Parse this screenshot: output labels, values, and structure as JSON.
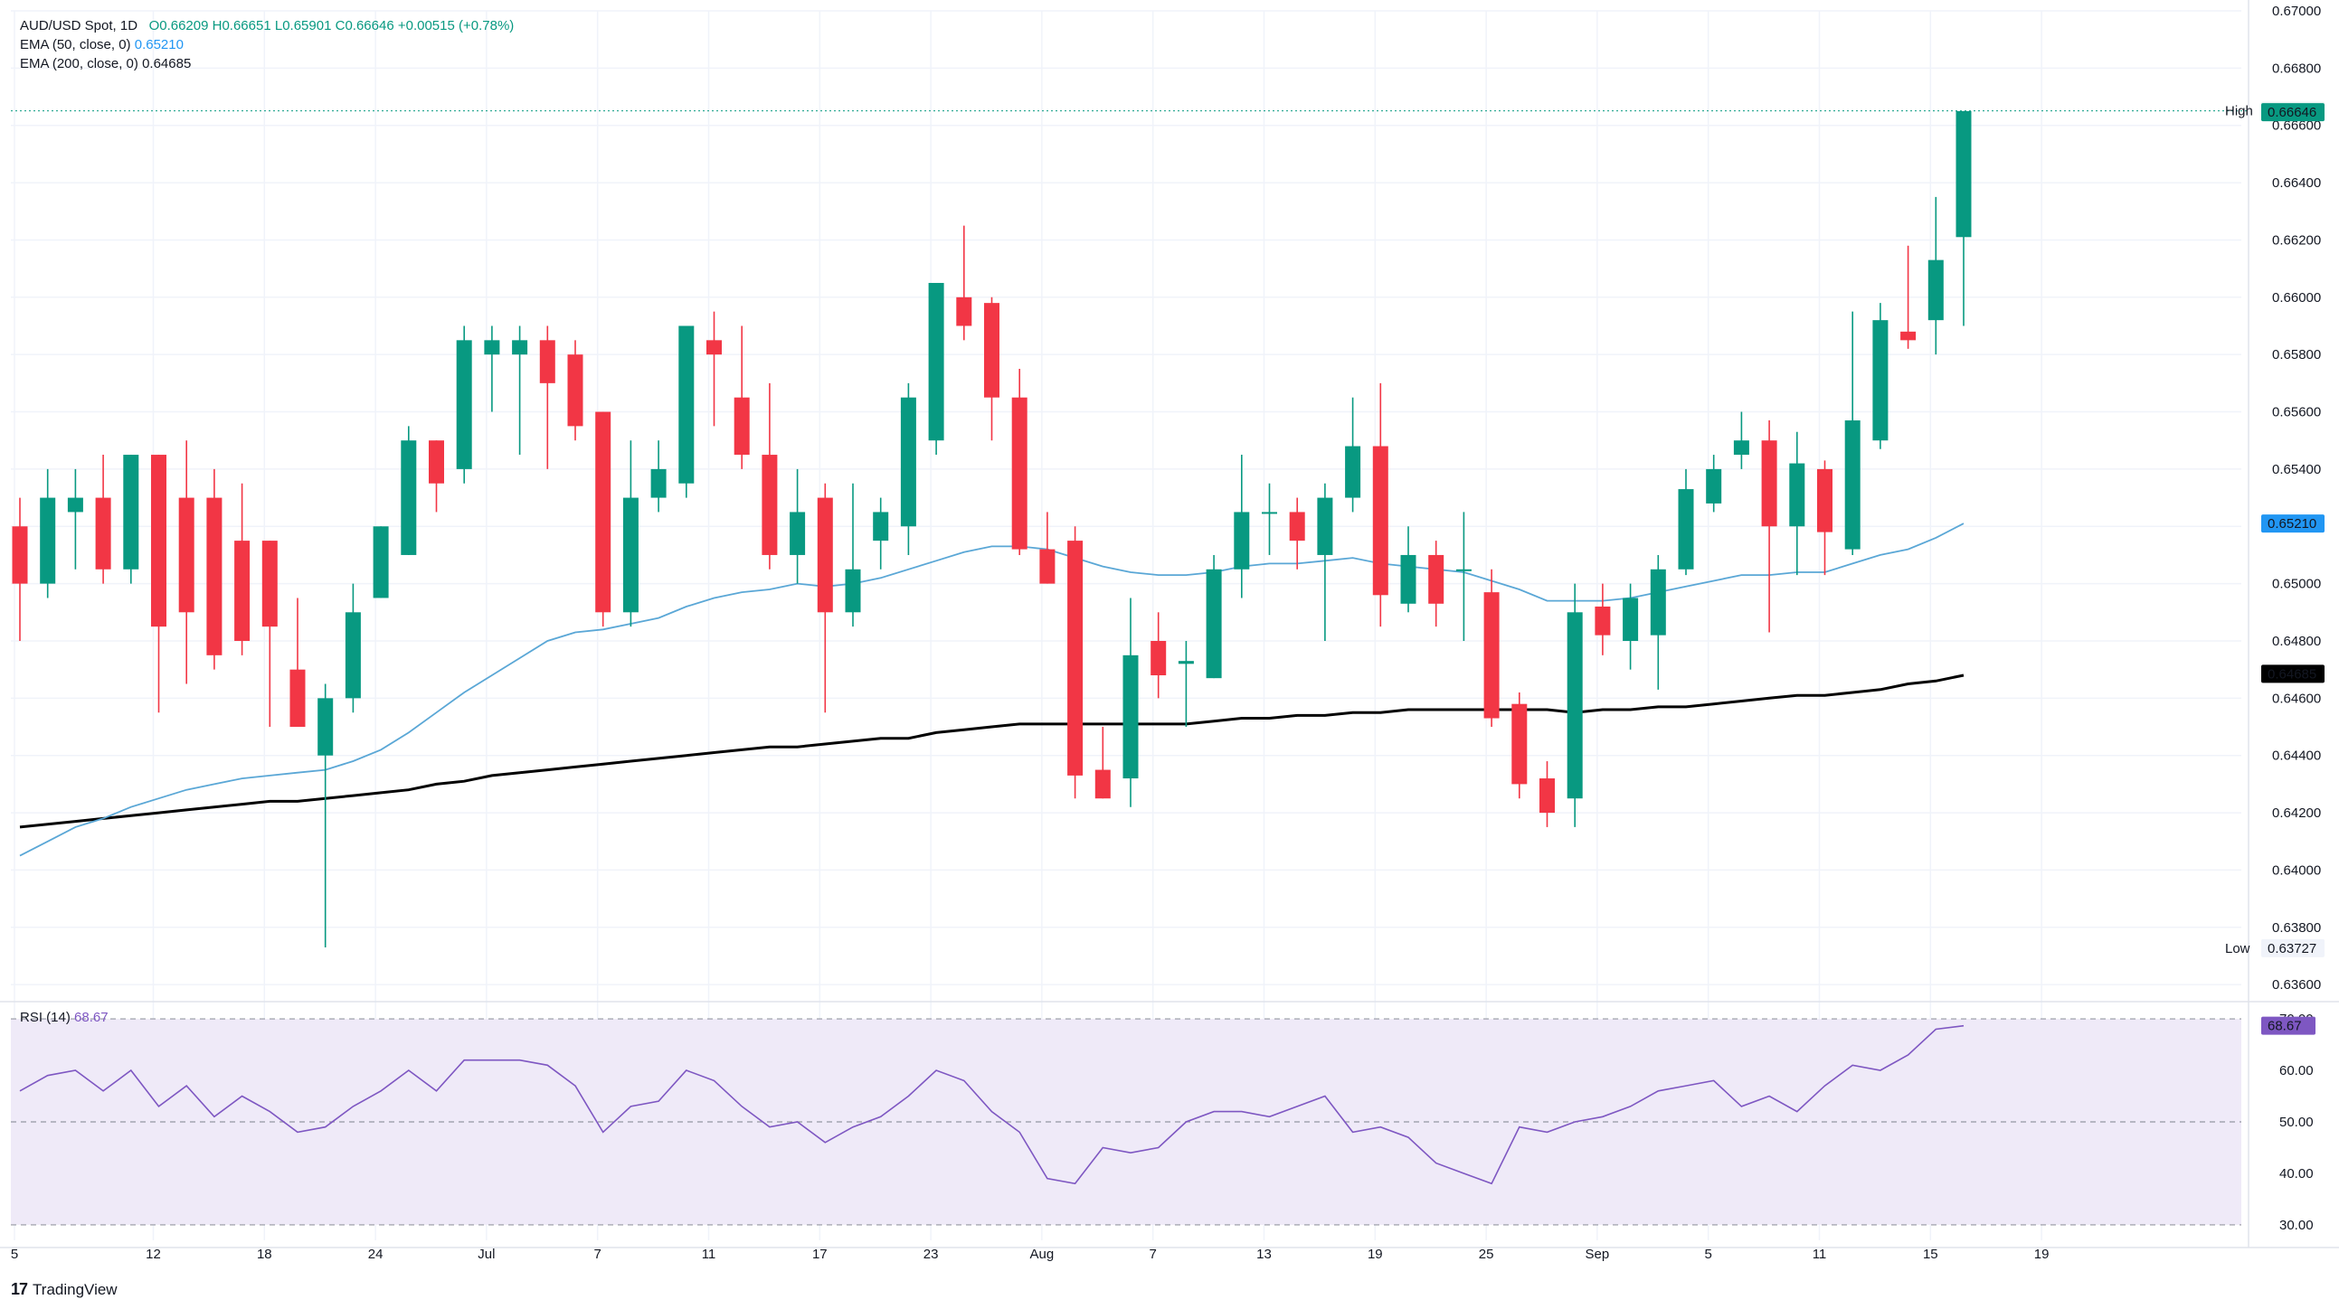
{
  "legend": {
    "symbol": "AUD/USD Spot, 1D",
    "o": "O0.66209",
    "h": "H0.66651",
    "l": "L0.65901",
    "c": "C0.66646",
    "chg": "+0.00515 (+0.78%)",
    "ema50_label": "EMA (50, close, 0)",
    "ema50_value": "0.65210",
    "ema200_label": "EMA (200, close, 0)",
    "ema200_value": "0.64685"
  },
  "rsi_legend": {
    "label": "RSI (14)",
    "value": "68.67"
  },
  "brand": {
    "name": "TradingView"
  },
  "colors": {
    "up": "#089981",
    "down": "#f23645",
    "ema50": "#5aa7d6",
    "ema200": "#000000",
    "rsi": "#7e57c2",
    "rsi_band": "#efeaf8"
  },
  "price_axis": {
    "ticks": [
      "0.67000",
      "0.66800",
      "0.66600",
      "0.66400",
      "0.66200",
      "0.66000",
      "0.65800",
      "0.65600",
      "0.65400",
      "0.65200",
      "0.65000",
      "0.64800",
      "0.64600",
      "0.64400",
      "0.64200",
      "0.64000",
      "0.63800",
      "0.63600"
    ],
    "badges": {
      "high_label": "High",
      "high_value": "0.66651",
      "last_value": "0.66646",
      "ema50_value": "0.65210",
      "ema200_value": "0.64685",
      "low_label": "Low",
      "low_value": "0.63727"
    }
  },
  "rsi_axis": {
    "ticks": [
      "70.00",
      "60.00",
      "50.00",
      "40.00",
      "30.00"
    ],
    "current": "68.67"
  },
  "time_axis": {
    "labels": [
      "5",
      "12",
      "18",
      "24",
      "Jul",
      "7",
      "11",
      "17",
      "23",
      "Aug",
      "7",
      "13",
      "19",
      "25",
      "Sep",
      "5",
      "11",
      "15",
      "19"
    ]
  },
  "chart_data": {
    "type": "candlestick",
    "title": "AUD/USD Spot, 1D",
    "ylim": [
      0.6355,
      0.67
    ],
    "candles": [
      {
        "o": 0.652,
        "h": 0.653,
        "l": 0.648,
        "c": 0.65
      },
      {
        "o": 0.65,
        "h": 0.654,
        "l": 0.6495,
        "c": 0.653
      },
      {
        "o": 0.6525,
        "h": 0.654,
        "l": 0.6505,
        "c": 0.653
      },
      {
        "o": 0.653,
        "h": 0.6545,
        "l": 0.65,
        "c": 0.6505
      },
      {
        "o": 0.6505,
        "h": 0.6545,
        "l": 0.65,
        "c": 0.6545
      },
      {
        "o": 0.6545,
        "h": 0.6545,
        "l": 0.6455,
        "c": 0.6485
      },
      {
        "o": 0.653,
        "h": 0.655,
        "l": 0.6465,
        "c": 0.649
      },
      {
        "o": 0.653,
        "h": 0.654,
        "l": 0.647,
        "c": 0.6475
      },
      {
        "o": 0.6515,
        "h": 0.6535,
        "l": 0.6475,
        "c": 0.648
      },
      {
        "o": 0.6515,
        "h": 0.6515,
        "l": 0.645,
        "c": 0.6485
      },
      {
        "o": 0.647,
        "h": 0.6495,
        "l": 0.645,
        "c": 0.645
      },
      {
        "o": 0.644,
        "h": 0.6465,
        "l": 0.6373,
        "c": 0.646
      },
      {
        "o": 0.646,
        "h": 0.65,
        "l": 0.6455,
        "c": 0.649
      },
      {
        "o": 0.6495,
        "h": 0.652,
        "l": 0.6495,
        "c": 0.652
      },
      {
        "o": 0.651,
        "h": 0.6555,
        "l": 0.651,
        "c": 0.655
      },
      {
        "o": 0.655,
        "h": 0.655,
        "l": 0.6525,
        "c": 0.6535
      },
      {
        "o": 0.654,
        "h": 0.659,
        "l": 0.6535,
        "c": 0.6585
      },
      {
        "o": 0.658,
        "h": 0.659,
        "l": 0.656,
        "c": 0.6585
      },
      {
        "o": 0.658,
        "h": 0.659,
        "l": 0.6545,
        "c": 0.6585
      },
      {
        "o": 0.6585,
        "h": 0.659,
        "l": 0.654,
        "c": 0.657
      },
      {
        "o": 0.658,
        "h": 0.6585,
        "l": 0.655,
        "c": 0.6555
      },
      {
        "o": 0.656,
        "h": 0.656,
        "l": 0.6485,
        "c": 0.649
      },
      {
        "o": 0.649,
        "h": 0.655,
        "l": 0.6485,
        "c": 0.653
      },
      {
        "o": 0.653,
        "h": 0.655,
        "l": 0.6525,
        "c": 0.654
      },
      {
        "o": 0.6535,
        "h": 0.659,
        "l": 0.653,
        "c": 0.659
      },
      {
        "o": 0.6585,
        "h": 0.6595,
        "l": 0.6555,
        "c": 0.658
      },
      {
        "o": 0.6565,
        "h": 0.659,
        "l": 0.654,
        "c": 0.6545
      },
      {
        "o": 0.6545,
        "h": 0.657,
        "l": 0.6505,
        "c": 0.651
      },
      {
        "o": 0.651,
        "h": 0.654,
        "l": 0.65,
        "c": 0.6525
      },
      {
        "o": 0.653,
        "h": 0.6535,
        "l": 0.6455,
        "c": 0.649
      },
      {
        "o": 0.649,
        "h": 0.6535,
        "l": 0.6485,
        "c": 0.6505
      },
      {
        "o": 0.6515,
        "h": 0.653,
        "l": 0.6505,
        "c": 0.6525
      },
      {
        "o": 0.652,
        "h": 0.657,
        "l": 0.651,
        "c": 0.6565
      },
      {
        "o": 0.655,
        "h": 0.6605,
        "l": 0.6545,
        "c": 0.6605
      },
      {
        "o": 0.66,
        "h": 0.6625,
        "l": 0.6585,
        "c": 0.659
      },
      {
        "o": 0.6598,
        "h": 0.66,
        "l": 0.655,
        "c": 0.6565
      },
      {
        "o": 0.6565,
        "h": 0.6575,
        "l": 0.651,
        "c": 0.6512
      },
      {
        "o": 0.6512,
        "h": 0.6525,
        "l": 0.65,
        "c": 0.65
      },
      {
        "o": 0.6515,
        "h": 0.652,
        "l": 0.6425,
        "c": 0.6433
      },
      {
        "o": 0.6435,
        "h": 0.645,
        "l": 0.6425,
        "c": 0.6425
      },
      {
        "o": 0.6432,
        "h": 0.6495,
        "l": 0.6422,
        "c": 0.6475
      },
      {
        "o": 0.648,
        "h": 0.649,
        "l": 0.646,
        "c": 0.6468
      },
      {
        "o": 0.6472,
        "h": 0.648,
        "l": 0.645,
        "c": 0.6473
      },
      {
        "o": 0.6467,
        "h": 0.651,
        "l": 0.6467,
        "c": 0.6505
      },
      {
        "o": 0.6505,
        "h": 0.6545,
        "l": 0.6495,
        "c": 0.6525
      },
      {
        "o": 0.6525,
        "h": 0.6535,
        "l": 0.651,
        "c": 0.6525
      },
      {
        "o": 0.6525,
        "h": 0.653,
        "l": 0.6505,
        "c": 0.6515
      },
      {
        "o": 0.651,
        "h": 0.6535,
        "l": 0.648,
        "c": 0.653
      },
      {
        "o": 0.653,
        "h": 0.6565,
        "l": 0.6525,
        "c": 0.6548
      },
      {
        "o": 0.6548,
        "h": 0.657,
        "l": 0.6485,
        "c": 0.6496
      },
      {
        "o": 0.6493,
        "h": 0.652,
        "l": 0.649,
        "c": 0.651
      },
      {
        "o": 0.651,
        "h": 0.6515,
        "l": 0.6485,
        "c": 0.6493
      },
      {
        "o": 0.6505,
        "h": 0.6525,
        "l": 0.648,
        "c": 0.6505
      },
      {
        "o": 0.6497,
        "h": 0.6505,
        "l": 0.645,
        "c": 0.6453
      },
      {
        "o": 0.6458,
        "h": 0.6462,
        "l": 0.6425,
        "c": 0.643
      },
      {
        "o": 0.6432,
        "h": 0.6438,
        "l": 0.6415,
        "c": 0.642
      },
      {
        "o": 0.6425,
        "h": 0.65,
        "l": 0.6415,
        "c": 0.649
      },
      {
        "o": 0.6492,
        "h": 0.65,
        "l": 0.6475,
        "c": 0.6482
      },
      {
        "o": 0.648,
        "h": 0.65,
        "l": 0.647,
        "c": 0.6495
      },
      {
        "o": 0.6482,
        "h": 0.651,
        "l": 0.6463,
        "c": 0.6505
      },
      {
        "o": 0.6505,
        "h": 0.654,
        "l": 0.6503,
        "c": 0.6533
      },
      {
        "o": 0.6528,
        "h": 0.6545,
        "l": 0.6525,
        "c": 0.654
      },
      {
        "o": 0.6545,
        "h": 0.656,
        "l": 0.654,
        "c": 0.655
      },
      {
        "o": 0.655,
        "h": 0.6557,
        "l": 0.6483,
        "c": 0.652
      },
      {
        "o": 0.652,
        "h": 0.6553,
        "l": 0.6503,
        "c": 0.6542
      },
      {
        "o": 0.654,
        "h": 0.6543,
        "l": 0.6503,
        "c": 0.6518
      },
      {
        "o": 0.6512,
        "h": 0.6595,
        "l": 0.651,
        "c": 0.6557
      },
      {
        "o": 0.655,
        "h": 0.6598,
        "l": 0.6547,
        "c": 0.6592
      },
      {
        "o": 0.6588,
        "h": 0.6618,
        "l": 0.6582,
        "c": 0.6585
      },
      {
        "o": 0.6592,
        "h": 0.6635,
        "l": 0.658,
        "c": 0.6613
      },
      {
        "o": 0.6621,
        "h": 0.6665,
        "l": 0.659,
        "c": 0.6665
      }
    ],
    "x_positions": [
      0,
      1,
      2,
      3,
      4,
      5,
      6,
      7,
      8,
      9,
      10,
      11,
      12,
      13,
      14,
      15,
      16,
      17,
      18,
      19,
      20,
      21,
      22,
      23,
      24,
      25,
      26,
      27,
      28,
      29,
      30,
      31,
      32,
      33,
      34,
      35,
      36,
      37,
      38,
      39,
      40,
      41,
      42,
      43,
      44,
      45,
      46,
      47,
      48,
      49,
      50,
      51,
      52,
      53,
      54,
      55,
      56,
      57,
      58,
      59,
      60,
      61,
      62,
      63,
      64,
      65,
      66,
      67,
      68,
      69,
      70
    ],
    "ema50": [
      0.6405,
      0.641,
      0.6415,
      0.6418,
      0.6422,
      0.6425,
      0.6428,
      0.643,
      0.6432,
      0.6433,
      0.6434,
      0.6435,
      0.6438,
      0.6442,
      0.6448,
      0.6455,
      0.6462,
      0.6468,
      0.6474,
      0.648,
      0.6483,
      0.6484,
      0.6486,
      0.6488,
      0.6492,
      0.6495,
      0.6497,
      0.6498,
      0.65,
      0.6499,
      0.65,
      0.6502,
      0.6505,
      0.6508,
      0.6511,
      0.6513,
      0.6513,
      0.6512,
      0.6509,
      0.6506,
      0.6504,
      0.6503,
      0.6503,
      0.6504,
      0.6506,
      0.6507,
      0.6507,
      0.6508,
      0.6509,
      0.6507,
      0.6506,
      0.6505,
      0.6504,
      0.6501,
      0.6498,
      0.6494,
      0.6494,
      0.6494,
      0.6495,
      0.6497,
      0.6499,
      0.6501,
      0.6503,
      0.6503,
      0.6504,
      0.6504,
      0.6507,
      0.651,
      0.6512,
      0.6516,
      0.6521
    ],
    "ema200": [
      0.6415,
      0.6416,
      0.6417,
      0.6418,
      0.6419,
      0.642,
      0.6421,
      0.6422,
      0.6423,
      0.6424,
      0.6424,
      0.6425,
      0.6426,
      0.6427,
      0.6428,
      0.643,
      0.6431,
      0.6433,
      0.6434,
      0.6435,
      0.6436,
      0.6437,
      0.6438,
      0.6439,
      0.644,
      0.6441,
      0.6442,
      0.6443,
      0.6443,
      0.6444,
      0.6445,
      0.6446,
      0.6446,
      0.6448,
      0.6449,
      0.645,
      0.6451,
      0.6451,
      0.6451,
      0.6451,
      0.6451,
      0.6451,
      0.6451,
      0.6452,
      0.6453,
      0.6453,
      0.6454,
      0.6454,
      0.6455,
      0.6455,
      0.6456,
      0.6456,
      0.6456,
      0.6456,
      0.6456,
      0.6456,
      0.6455,
      0.6456,
      0.6456,
      0.6457,
      0.6457,
      0.6458,
      0.6459,
      0.646,
      0.6461,
      0.6461,
      0.6462,
      0.6463,
      0.6465,
      0.6466,
      0.6468
    ],
    "rsi": [
      56,
      59,
      60,
      56,
      60,
      53,
      57,
      51,
      55,
      52,
      48,
      49,
      53,
      56,
      60,
      56,
      62,
      62,
      62,
      61,
      57,
      48,
      53,
      54,
      60,
      58,
      53,
      49,
      50,
      46,
      49,
      51,
      55,
      60,
      58,
      52,
      48,
      39,
      38,
      45,
      44,
      45,
      50,
      52,
      52,
      51,
      53,
      55,
      48,
      49,
      47,
      42,
      40,
      38,
      49,
      48,
      50,
      51,
      53,
      56,
      57,
      58,
      53,
      55,
      52,
      57,
      61,
      60,
      63,
      68,
      68.67
    ],
    "rsi_ylim": [
      27,
      73
    ],
    "rsi_levels": [
      70,
      50,
      30
    ]
  }
}
